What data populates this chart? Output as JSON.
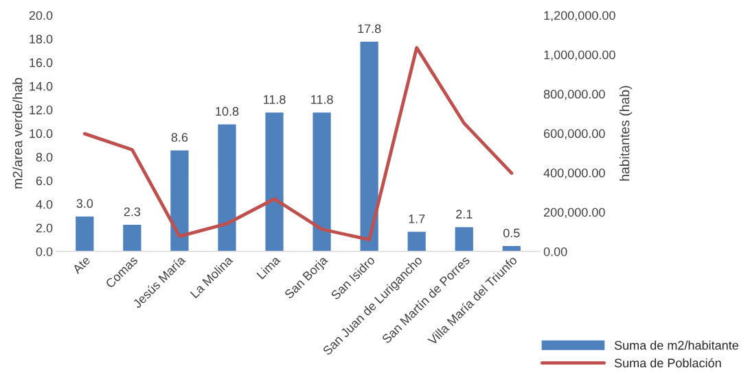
{
  "chart_data": {
    "type": "bar",
    "categories": [
      "Ate",
      "Comas",
      "Jesús María",
      "La Molina",
      "Lima",
      "San Borja",
      "San Isidro",
      "San Juan de Lurigancho",
      "San Martín de Porres",
      "Villa María del Triunfo"
    ],
    "ylabel": "m2/area verde/hab",
    "y2label": "habitantes (hab)",
    "ylim": [
      0,
      20
    ],
    "yticks": [
      {
        "value": 0,
        "label": "0.0"
      },
      {
        "value": 2,
        "label": "2.0"
      },
      {
        "value": 4,
        "label": "4.0"
      },
      {
        "value": 6,
        "label": "6.0"
      },
      {
        "value": 8,
        "label": "8.0"
      },
      {
        "value": 10,
        "label": "10.0"
      },
      {
        "value": 12,
        "label": "12.0"
      },
      {
        "value": 14,
        "label": "14.0"
      },
      {
        "value": 16,
        "label": "16.0"
      },
      {
        "value": 18,
        "label": "18.0"
      },
      {
        "value": 20,
        "label": "20.0"
      }
    ],
    "y2lim": [
      0,
      1200000
    ],
    "y2ticks": [
      {
        "value": 0,
        "label": "0.00"
      },
      {
        "value": 200000,
        "label": "200,000.00"
      },
      {
        "value": 400000,
        "label": "400,000.00"
      },
      {
        "value": 600000,
        "label": "600,000.00"
      },
      {
        "value": 800000,
        "label": "800,000.00"
      },
      {
        "value": 1000000,
        "label": "1,000,000.00"
      },
      {
        "value": 1200000,
        "label": "1,200,000.00"
      }
    ],
    "series": [
      {
        "name": "Suma de m2/habitante",
        "color": "#4f81bd",
        "values": [
          3.0,
          2.3,
          8.6,
          10.8,
          11.8,
          11.8,
          17.8,
          1.7,
          2.1,
          0.5
        ],
        "value_labels": [
          "3.0",
          "2.3",
          "8.6",
          "10.8",
          "11.8",
          "11.8",
          "17.8",
          "1.7",
          "2.1",
          "0.5"
        ]
      },
      {
        "name": "Suma de Población",
        "type": "line",
        "axis": "y2",
        "color": "#c0504d",
        "values": [
          598000,
          517000,
          77000,
          141000,
          267000,
          113000,
          60000,
          1035000,
          651000,
          398000
        ]
      }
    ],
    "legend": "bottom right",
    "grid": false
  }
}
